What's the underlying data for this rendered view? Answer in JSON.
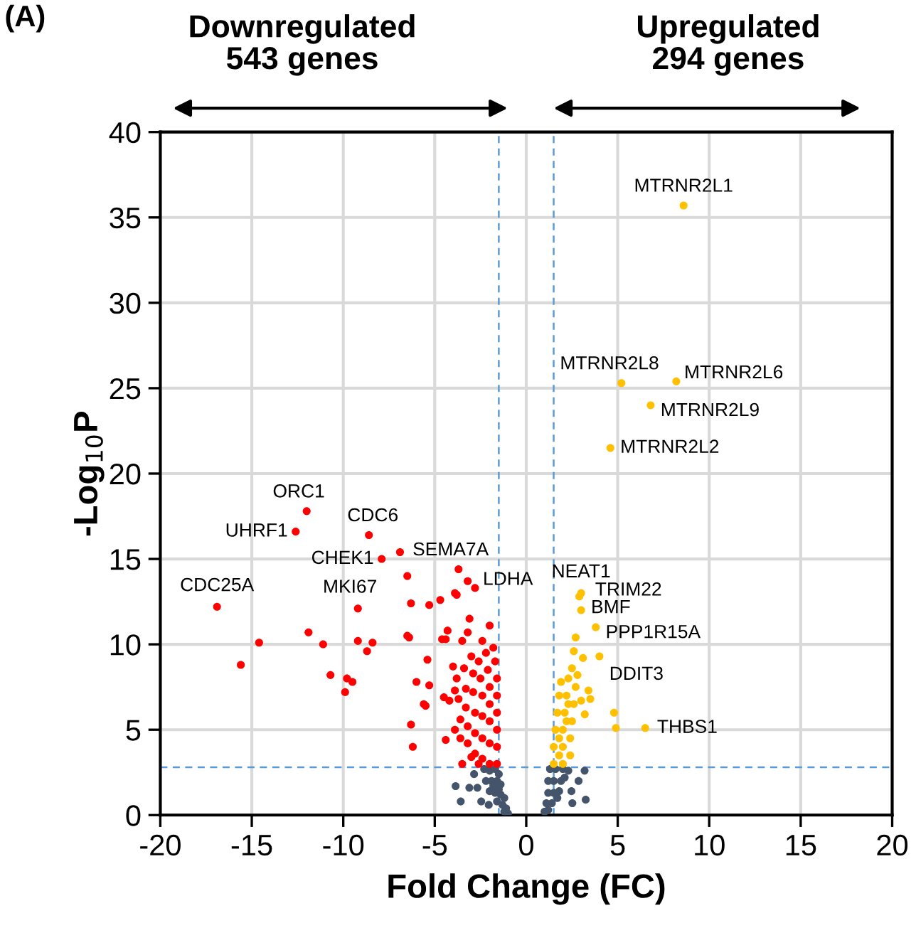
{
  "chart_data": {
    "type": "scatter",
    "xlabel": "Fold Change (FC)",
    "ylabel": "-Log$_{10}$P",
    "xlim": [
      -20,
      20
    ],
    "xticks": [
      -20,
      -15,
      -10,
      -5,
      0,
      5,
      10,
      15,
      20
    ],
    "ylim": [
      0,
      40
    ],
    "yticks": [
      0,
      5,
      10,
      15,
      20,
      25,
      30,
      35,
      40
    ],
    "grid": true,
    "marker": "circle",
    "ref_lines": [
      {
        "axis": "x",
        "value": -1.5,
        "color": "#5b9bd5",
        "line_style": "dashed"
      },
      {
        "axis": "x",
        "value": 1.5,
        "color": "#5b9bd5",
        "line_style": "dashed"
      },
      {
        "axis": "y",
        "value": 2.8,
        "color": "#5b9bd5",
        "line_style": "dashed"
      }
    ],
    "series": [
      {
        "color": "#44546a",
        "x": [
          -3.86,
          -3.58,
          -3.11,
          -2.85,
          -2.67,
          -2.46,
          -2.05,
          -2.3,
          -2.0,
          -1.7,
          -2.2,
          -1.9,
          -1.6,
          -1.4,
          -2.0,
          -1.7,
          -1.4,
          -1.2,
          -1.6,
          -1.3,
          -1.1,
          -1.0,
          -1.2,
          -1.5,
          -1.8,
          -1.5,
          3.19,
          2.86,
          2.47,
          3.25,
          2.52,
          1.3,
          1.6,
          2.0,
          2.3,
          1.2,
          1.5,
          1.9,
          1.2,
          1.5,
          1.8,
          1.1,
          1.4,
          1.0,
          1.2,
          1.7,
          2.1
        ],
        "values": [
          1.7,
          0.8,
          1.6,
          2.4,
          1.6,
          0.8,
          0.6,
          2.7,
          2.6,
          2.7,
          2.0,
          2.0,
          2.0,
          1.8,
          1.4,
          1.3,
          1.2,
          1.0,
          0.8,
          0.6,
          0.4,
          0.1,
          0.2,
          2.4,
          1.7,
          1.5,
          2.6,
          2.0,
          1.4,
          0.9,
          0.7,
          2.7,
          2.7,
          2.7,
          2.6,
          2.0,
          2.0,
          2.0,
          1.3,
          1.3,
          1.4,
          0.7,
          0.7,
          0.2,
          0.3,
          1.0,
          2.2
        ]
      },
      {
        "color": "#ff0000",
        "x": [
          -12.0,
          -12.6,
          -8.6,
          -7.9,
          -3.7,
          -2.8,
          -3.2,
          -16.9,
          -9.2,
          -6.9,
          -6.5,
          -6.3,
          -5.3,
          -4.7,
          -3.9,
          -3.8,
          -3.1,
          -2.0,
          -14.6,
          -15.6,
          -11.9,
          -11.1,
          -10.7,
          -9.8,
          -9.5,
          -9.9,
          -9.2,
          -8.7,
          -8.4,
          -6.5,
          -6.4,
          -5.4,
          -6.0,
          -5.3,
          -5.6,
          -6.3,
          -6.2,
          -4.4,
          -3.5,
          -4.3,
          -4.6,
          -4.4,
          -3.5,
          -3.2,
          -2.4,
          -4.5,
          -5.5,
          -4.0,
          -3.8,
          -4.2,
          -1.6,
          -1.6,
          -1.6,
          -1.6,
          -1.6,
          -1.6,
          -1.7,
          -1.8,
          -2.0,
          -2.0,
          -2.0,
          -2.0,
          -2.0,
          -2.1,
          -2.2,
          -2.4,
          -2.4,
          -2.4,
          -2.4,
          -2.5,
          -2.6,
          -2.8,
          -2.8,
          -2.8,
          -2.9,
          -2.9,
          -3.0,
          -3.2,
          -3.2,
          -3.3,
          -3.3,
          -3.4,
          -3.6,
          -3.6,
          -3.7,
          -3.9,
          -3.9,
          -2.6,
          -3.0
        ],
        "values": [
          17.8,
          16.6,
          16.4,
          15.0,
          14.4,
          13.3,
          13.7,
          12.2,
          12.1,
          15.4,
          14.0,
          12.4,
          12.3,
          12.6,
          13.0,
          12.9,
          11.5,
          11.1,
          10.1,
          8.8,
          10.7,
          10.0,
          8.2,
          8.0,
          7.8,
          7.2,
          10.2,
          9.6,
          10.1,
          10.5,
          10.4,
          9.1,
          7.8,
          7.6,
          6.5,
          5.3,
          4.0,
          4.4,
          3.0,
          10.8,
          10.3,
          10.3,
          10.2,
          10.7,
          10.2,
          6.9,
          6.4,
          8.7,
          8.0,
          6.7,
          3.0,
          4.0,
          5.0,
          6.0,
          7.0,
          8.0,
          9.0,
          9.8,
          3.0,
          4.2,
          5.5,
          6.5,
          7.5,
          8.5,
          9.5,
          3.3,
          4.5,
          5.8,
          7.0,
          8.0,
          9.0,
          3.6,
          4.8,
          6.0,
          7.2,
          8.3,
          9.3,
          4.2,
          5.2,
          6.3,
          7.4,
          8.6,
          4.5,
          5.6,
          6.8,
          5.0,
          7.3,
          3.0,
          3.4
        ]
      },
      {
        "color": "#ffc000",
        "x": [
          8.6,
          5.2,
          8.2,
          6.8,
          4.6,
          3.0,
          2.9,
          3.0,
          3.8,
          4.0,
          6.5,
          4.9,
          4.8,
          2.7,
          2.6,
          3.1,
          3.4,
          3.0,
          3.2,
          3.5,
          1.5,
          1.5,
          1.6,
          1.7,
          1.8,
          1.9,
          2.0,
          2.0,
          2.0,
          2.1,
          2.2,
          2.3,
          2.5,
          2.4,
          2.4,
          2.5,
          2.6,
          2.7,
          2.8,
          1.8,
          1.8,
          2.2,
          2.3
        ],
        "values": [
          35.7,
          25.3,
          25.4,
          24.0,
          21.5,
          13.0,
          12.8,
          12.0,
          11.0,
          9.3,
          5.1,
          5.1,
          6.0,
          10.4,
          9.6,
          9.2,
          7.3,
          6.7,
          5.9,
          6.8,
          3.0,
          4.0,
          5.0,
          6.0,
          7.0,
          7.8,
          3.0,
          4.0,
          5.0,
          6.0,
          7.0,
          8.0,
          8.6,
          3.5,
          4.5,
          5.5,
          6.5,
          7.5,
          8.2,
          3.5,
          4.5,
          5.5,
          6.5
        ]
      }
    ],
    "annotations": [
      {
        "text": "ORC1",
        "x": -12.0,
        "y": 17.8
      },
      {
        "text": "UHRF1",
        "x": -12.6,
        "y": 16.6
      },
      {
        "text": "CDC6",
        "x": -8.6,
        "y": 16.4
      },
      {
        "text": "CHEK1",
        "x": -7.9,
        "y": 15.0
      },
      {
        "text": "SEMA7A",
        "x": -3.7,
        "y": 14.4
      },
      {
        "text": "LDHA",
        "x": -2.8,
        "y": 13.3
      },
      {
        "text": "CDC25A",
        "x": -16.9,
        "y": 12.2
      },
      {
        "text": "MKI67",
        "x": -9.2,
        "y": 12.1
      },
      {
        "text": "NEAT1",
        "x": 3.0,
        "y": 13.0
      },
      {
        "text": "TRIM22",
        "x": 2.9,
        "y": 12.8
      },
      {
        "text": "BMF",
        "x": 3.0,
        "y": 12.0
      },
      {
        "text": "PPP1R15A",
        "x": 3.8,
        "y": 11.0
      },
      {
        "text": "DDIT3",
        "x": 4.0,
        "y": 9.3
      },
      {
        "text": "THBS1",
        "x": 6.5,
        "y": 5.1
      },
      {
        "text": "MTRNR2L1",
        "x": 8.6,
        "y": 35.7
      },
      {
        "text": "MTRNR2L8",
        "x": 5.2,
        "y": 25.3
      },
      {
        "text": "MTRNR2L6",
        "x": 8.2,
        "y": 25.4
      },
      {
        "text": "MTRNR2L9",
        "x": 6.8,
        "y": 24.0
      },
      {
        "text": "MTRNR2L2",
        "x": 4.6,
        "y": 21.5
      },
      "(A)",
      "Downregulated\n543 genes",
      "Upregulated\n294 genes"
    ]
  }
}
